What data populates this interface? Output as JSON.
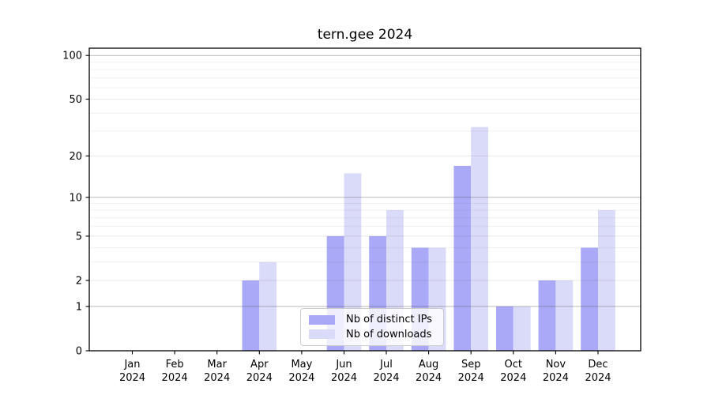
{
  "chart_data": {
    "type": "bar",
    "title": "tern.gee 2024",
    "x_tick_year": "2024",
    "categories": [
      "Jan",
      "Feb",
      "Mar",
      "Apr",
      "May",
      "Jun",
      "Jul",
      "Aug",
      "Sep",
      "Oct",
      "Nov",
      "Dec"
    ],
    "series": [
      {
        "name": "Nb of distinct IPs",
        "color": "#a9a9f8",
        "values": [
          0,
          0,
          0,
          2,
          0,
          5,
          5,
          4,
          17,
          1,
          2,
          4
        ]
      },
      {
        "name": "Nb of downloads",
        "color": "#dadaf9",
        "values": [
          0,
          0,
          0,
          3,
          0,
          15,
          8,
          4,
          32,
          1,
          2,
          8
        ]
      }
    ],
    "y_ticks": [
      0,
      1,
      2,
      5,
      10,
      20,
      50,
      100
    ],
    "y_scale": "log1p",
    "ylim": [
      0,
      110
    ],
    "grid": {
      "on": true,
      "emphasis_values": [
        1,
        10,
        100
      ],
      "weak_values": [
        2,
        5,
        20,
        50
      ],
      "minor_values": [
        3,
        4,
        6,
        7,
        8,
        9,
        30,
        40,
        60,
        70,
        80,
        90
      ],
      "emphasis_color": "rgba(80,80,80,0.40)",
      "weak_color": "rgba(80,80,80,0.13)",
      "minor_color": "rgba(80,80,80,0.08)"
    },
    "legend_position": "lower center"
  }
}
